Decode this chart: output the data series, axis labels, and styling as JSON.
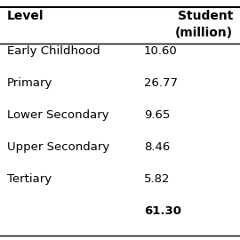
{
  "col_headers": [
    "Level",
    "Student\n(million)"
  ],
  "rows": [
    [
      "Early Childhood",
      "10.60"
    ],
    [
      "Primary",
      "26.77"
    ],
    [
      "Lower Secondary",
      "9.65"
    ],
    [
      "Upper Secondary",
      "8.46"
    ],
    [
      "Tertiary",
      "5.82"
    ],
    [
      "",
      "61.30"
    ]
  ],
  "total_row_bold": true,
  "header_bold": true,
  "bg_color": "#ffffff",
  "font_size": 9.5,
  "header_font_size": 10
}
